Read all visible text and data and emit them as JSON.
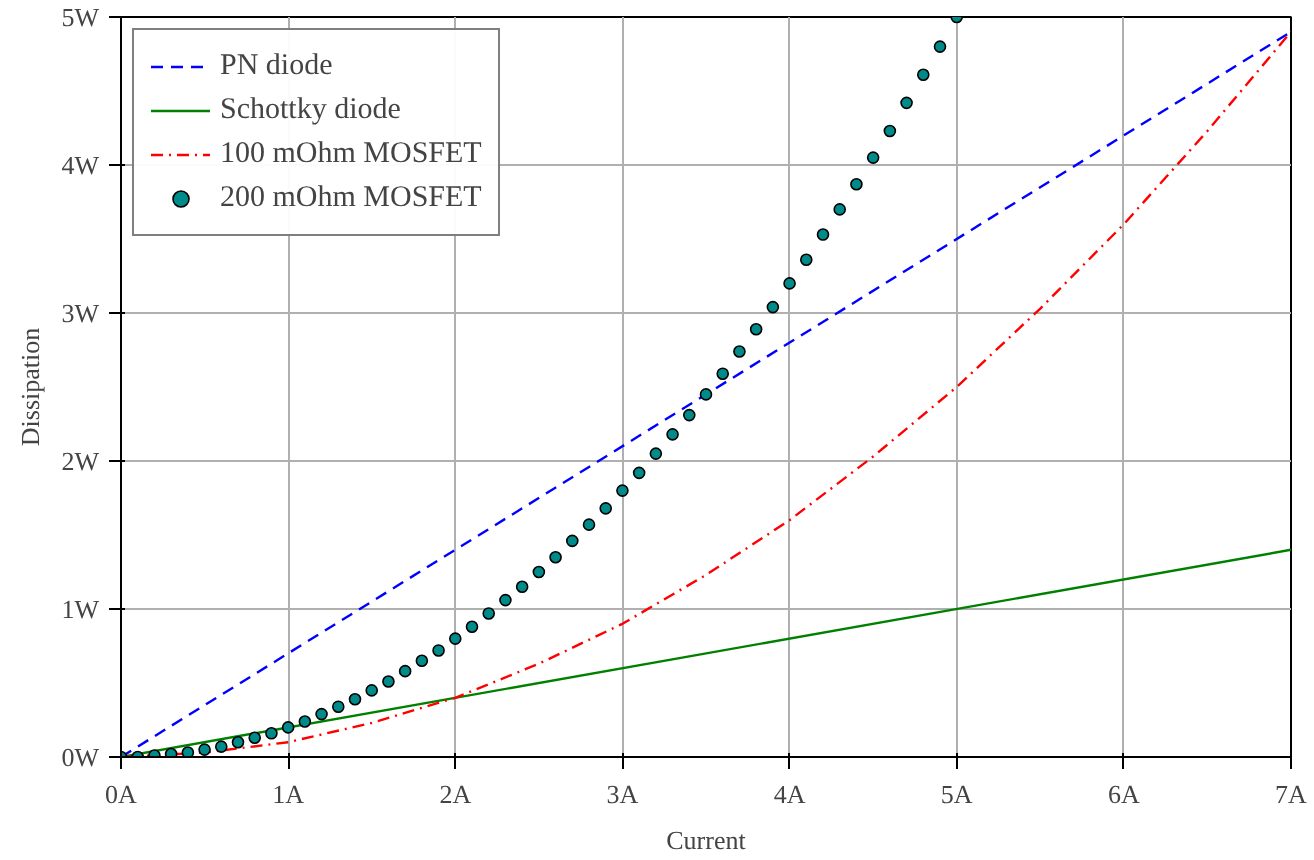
{
  "chart_data": {
    "type": "line",
    "xlabel": "Current",
    "ylabel": "Dissipation",
    "xlim": [
      0,
      7
    ],
    "ylim": [
      0,
      5
    ],
    "xticks": [
      {
        "value": 0,
        "label": "0A"
      },
      {
        "value": 1,
        "label": "1A"
      },
      {
        "value": 2,
        "label": "2A"
      },
      {
        "value": 3,
        "label": "3A"
      },
      {
        "value": 4,
        "label": "4A"
      },
      {
        "value": 5,
        "label": "5A"
      },
      {
        "value": 6,
        "label": "6A"
      },
      {
        "value": 7,
        "label": "7A"
      }
    ],
    "yticks": [
      {
        "value": 0,
        "label": "0W"
      },
      {
        "value": 1,
        "label": "1W"
      },
      {
        "value": 2,
        "label": "2W"
      },
      {
        "value": 3,
        "label": "3W"
      },
      {
        "value": 4,
        "label": "4W"
      },
      {
        "value": 5,
        "label": "5W"
      }
    ],
    "grid": true,
    "legend": "top left",
    "series": [
      {
        "name": "PN diode",
        "color": "#0000ff",
        "line_style": "dashed",
        "x": [
          0,
          7
        ],
        "values": [
          0,
          4.9
        ]
      },
      {
        "name": "Schottky diode",
        "color": "#008000",
        "line_style": "solid",
        "x": [
          0,
          7
        ],
        "values": [
          0,
          1.4
        ]
      },
      {
        "name": "100 mOhm MOSFET",
        "color": "#ff0000",
        "line_style": "dashdot",
        "x": [
          0,
          0.5,
          1,
          1.5,
          2,
          2.5,
          3,
          3.5,
          4,
          4.5,
          5,
          5.5,
          6,
          6.5,
          7
        ],
        "values": [
          0,
          0.03,
          0.1,
          0.23,
          0.4,
          0.63,
          0.9,
          1.23,
          1.6,
          2.03,
          2.5,
          3.03,
          3.6,
          4.23,
          4.9
        ]
      },
      {
        "name": "200 mOhm MOSFET",
        "type": "scatter",
        "marker": "circle",
        "color": "#008b8b",
        "x": [
          0,
          0.1,
          0.2,
          0.3,
          0.4,
          0.5,
          0.6,
          0.7,
          0.8,
          0.9,
          1.0,
          1.1,
          1.2,
          1.3,
          1.4,
          1.5,
          1.6,
          1.7,
          1.8,
          1.9,
          2.0,
          2.1,
          2.2,
          2.3,
          2.4,
          2.5,
          2.6,
          2.7,
          2.8,
          2.9,
          3.0,
          3.1,
          3.2,
          3.3,
          3.4,
          3.5,
          3.6,
          3.7,
          3.8,
          3.9,
          4.0,
          4.1,
          4.2,
          4.3,
          4.4,
          4.5,
          4.6,
          4.7,
          4.8,
          4.9,
          5.0
        ],
        "values": [
          0,
          0.0,
          0.01,
          0.02,
          0.03,
          0.05,
          0.07,
          0.1,
          0.13,
          0.16,
          0.2,
          0.24,
          0.29,
          0.34,
          0.39,
          0.45,
          0.51,
          0.58,
          0.65,
          0.72,
          0.8,
          0.88,
          0.97,
          1.06,
          1.15,
          1.25,
          1.35,
          1.46,
          1.57,
          1.68,
          1.8,
          1.92,
          2.05,
          2.18,
          2.31,
          2.45,
          2.59,
          2.74,
          2.89,
          3.04,
          3.2,
          3.36,
          3.53,
          3.7,
          3.87,
          4.05,
          4.23,
          4.42,
          4.61,
          4.8,
          5.0
        ]
      }
    ]
  }
}
